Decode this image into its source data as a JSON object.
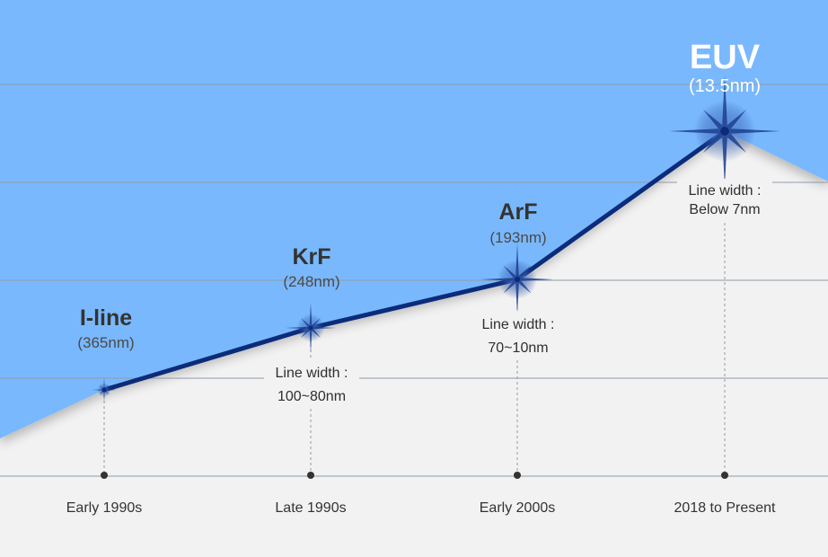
{
  "colors": {
    "sky": "#79b8fc",
    "ground": "#f2f2f2",
    "line": "#0a2c7a",
    "gridline": "#8f9bab"
  },
  "chart_data": {
    "type": "line",
    "title": "",
    "xlabel": "",
    "ylabel": "",
    "categories": [
      "Early 1990s",
      "Late 1990s",
      "Early 2000s",
      "2018 to Present"
    ],
    "points": [
      {
        "period": "Early 1990s",
        "technology": "I-line",
        "wavelength": "(365nm)",
        "line_width_label": "",
        "line_width_value": "",
        "level": 1
      },
      {
        "period": "Late 1990s",
        "technology": "KrF",
        "wavelength": "(248nm)",
        "line_width_label": "Line width :",
        "line_width_value": "100~80nm",
        "level": 2
      },
      {
        "period": "Early 2000s",
        "technology": "ArF",
        "wavelength": "(193nm)",
        "line_width_label": "Line width :",
        "line_width_value": "70~10nm",
        "level": 3
      },
      {
        "period": "2018 to Present",
        "technology": "EUV",
        "wavelength": "(13.5nm)",
        "line_width_label": "Line width :",
        "line_width_value": "Below 7nm",
        "level": 4
      }
    ],
    "grid": true,
    "legend": "none"
  }
}
